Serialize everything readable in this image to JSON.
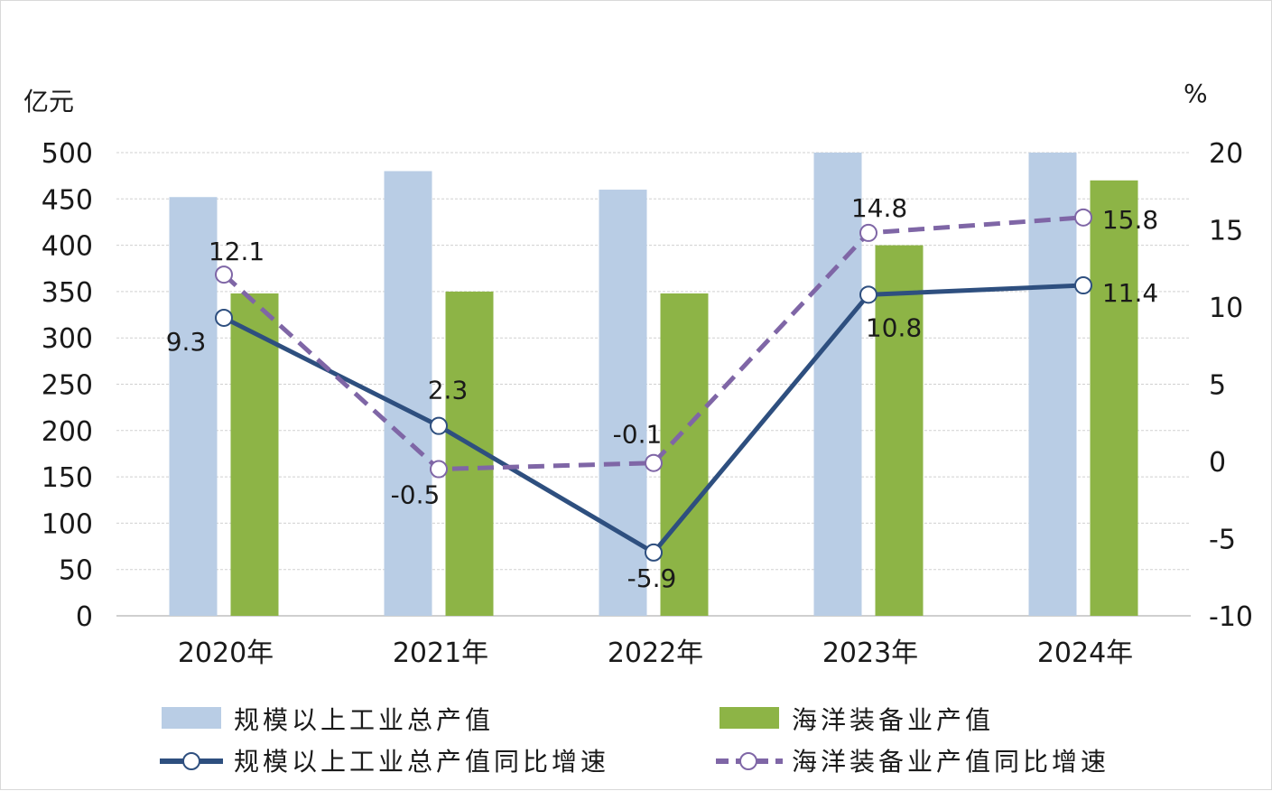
{
  "chart_data": {
    "type": "bar",
    "categories": [
      "2020年",
      "2021年",
      "2022年",
      "2023年",
      "2024年"
    ],
    "y_left": {
      "unit": "亿元",
      "range": [
        0,
        500
      ],
      "ticks": [
        0,
        50,
        100,
        150,
        200,
        250,
        300,
        350,
        400,
        450,
        500
      ]
    },
    "y_right": {
      "unit": "%",
      "range": [
        -10,
        20
      ],
      "ticks": [
        -10,
        -5,
        0,
        5,
        10,
        15,
        20
      ]
    },
    "grid": true,
    "legend_position": "bottom",
    "series": [
      {
        "name": "规模以上工业总产值",
        "type": "bar",
        "axis": "left",
        "color": "#b9cde5",
        "values": [
          452,
          480,
          460,
          510,
          520
        ]
      },
      {
        "name": "海洋装备业产值",
        "type": "bar",
        "axis": "left",
        "color": "#8db446",
        "values": [
          348,
          350,
          348,
          400,
          470
        ]
      },
      {
        "name": "规模以上工业总产值同比增速",
        "type": "line",
        "axis": "right",
        "color": "#2e4f7f",
        "style": "solid",
        "values": [
          9.3,
          2.3,
          -5.9,
          10.8,
          11.4
        ],
        "labels": [
          "9.3",
          "2.3",
          "-5.9",
          "10.8",
          "11.4"
        ]
      },
      {
        "name": "海洋装备业产值同比增速",
        "type": "line",
        "axis": "right",
        "color": "#7f66a6",
        "style": "dashed",
        "values": [
          12.1,
          -0.5,
          -0.1,
          14.8,
          15.8
        ],
        "labels": [
          "12.1",
          "-0.5",
          "-0.1",
          "14.8",
          "15.8"
        ]
      }
    ]
  }
}
